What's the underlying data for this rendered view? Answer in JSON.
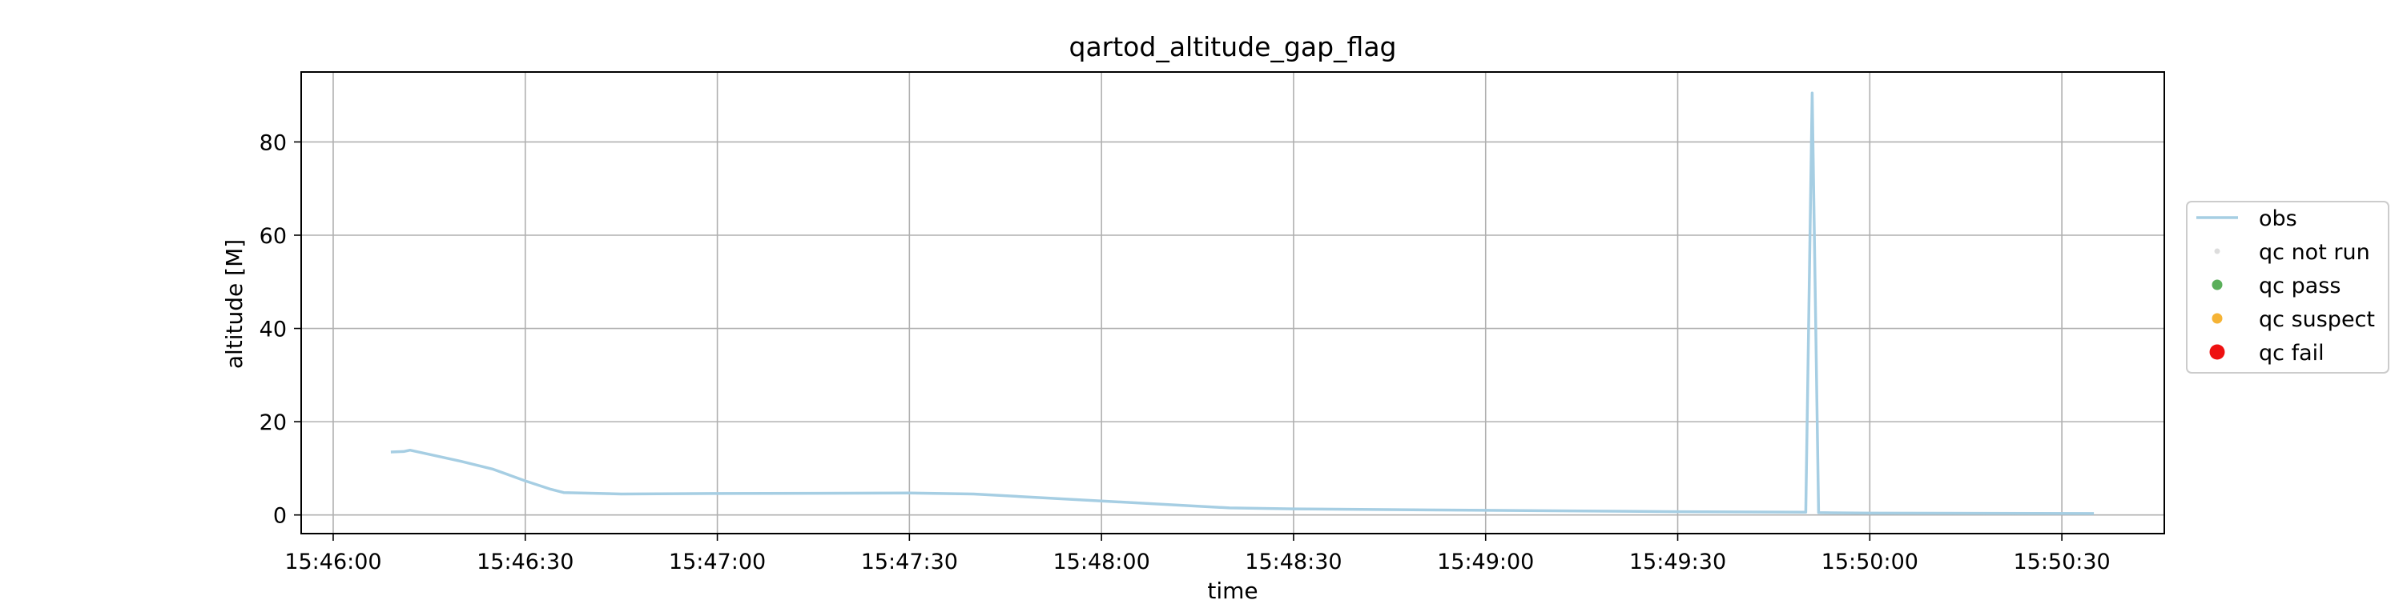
{
  "chart_data": {
    "type": "line",
    "title": "qartod_altitude_gap_flag",
    "xlabel": "time",
    "ylabel": "altitude [M]",
    "x_range": [
      "15:45:55",
      "15:50:46"
    ],
    "ylim": [
      -4,
      95
    ],
    "x_ticks": [
      "15:46:00",
      "15:46:30",
      "15:47:00",
      "15:47:30",
      "15:48:00",
      "15:48:30",
      "15:49:00",
      "15:49:30",
      "15:50:00",
      "15:50:30"
    ],
    "y_ticks": [
      0,
      20,
      40,
      60,
      80
    ],
    "grid": true,
    "legend_position": "center-right outside",
    "legend": [
      "obs",
      "qc not run",
      "qc pass",
      "qc suspect",
      "qc fail"
    ],
    "series": [
      {
        "name": "obs",
        "color": "#a6cee3",
        "style": "line",
        "x": [
          "15:46:09",
          "15:46:11",
          "15:46:12",
          "15:46:15",
          "15:46:20",
          "15:46:25",
          "15:46:30",
          "15:46:34",
          "15:46:36",
          "15:46:45",
          "15:47:00",
          "15:47:30",
          "15:47:40",
          "15:48:00",
          "15:48:20",
          "15:48:30",
          "15:49:00",
          "15:49:30",
          "15:49:50",
          "15:49:51",
          "15:49:52",
          "15:50:00",
          "15:50:35"
        ],
        "y": [
          13.5,
          13.6,
          13.9,
          13.0,
          11.5,
          9.8,
          7.3,
          5.5,
          4.8,
          4.5,
          4.6,
          4.7,
          4.5,
          3.0,
          1.5,
          1.3,
          1.0,
          0.7,
          0.6,
          90.5,
          0.5,
          0.4,
          0.3
        ]
      },
      {
        "name": "qc not run",
        "color": "#dddddd",
        "style": "dot"
      },
      {
        "name": "qc pass",
        "color": "#5aaf5a",
        "style": "dot"
      },
      {
        "name": "qc suspect",
        "color": "#f5b335",
        "style": "dot"
      },
      {
        "name": "qc fail",
        "color": "#ee1111",
        "style": "dot"
      }
    ]
  }
}
